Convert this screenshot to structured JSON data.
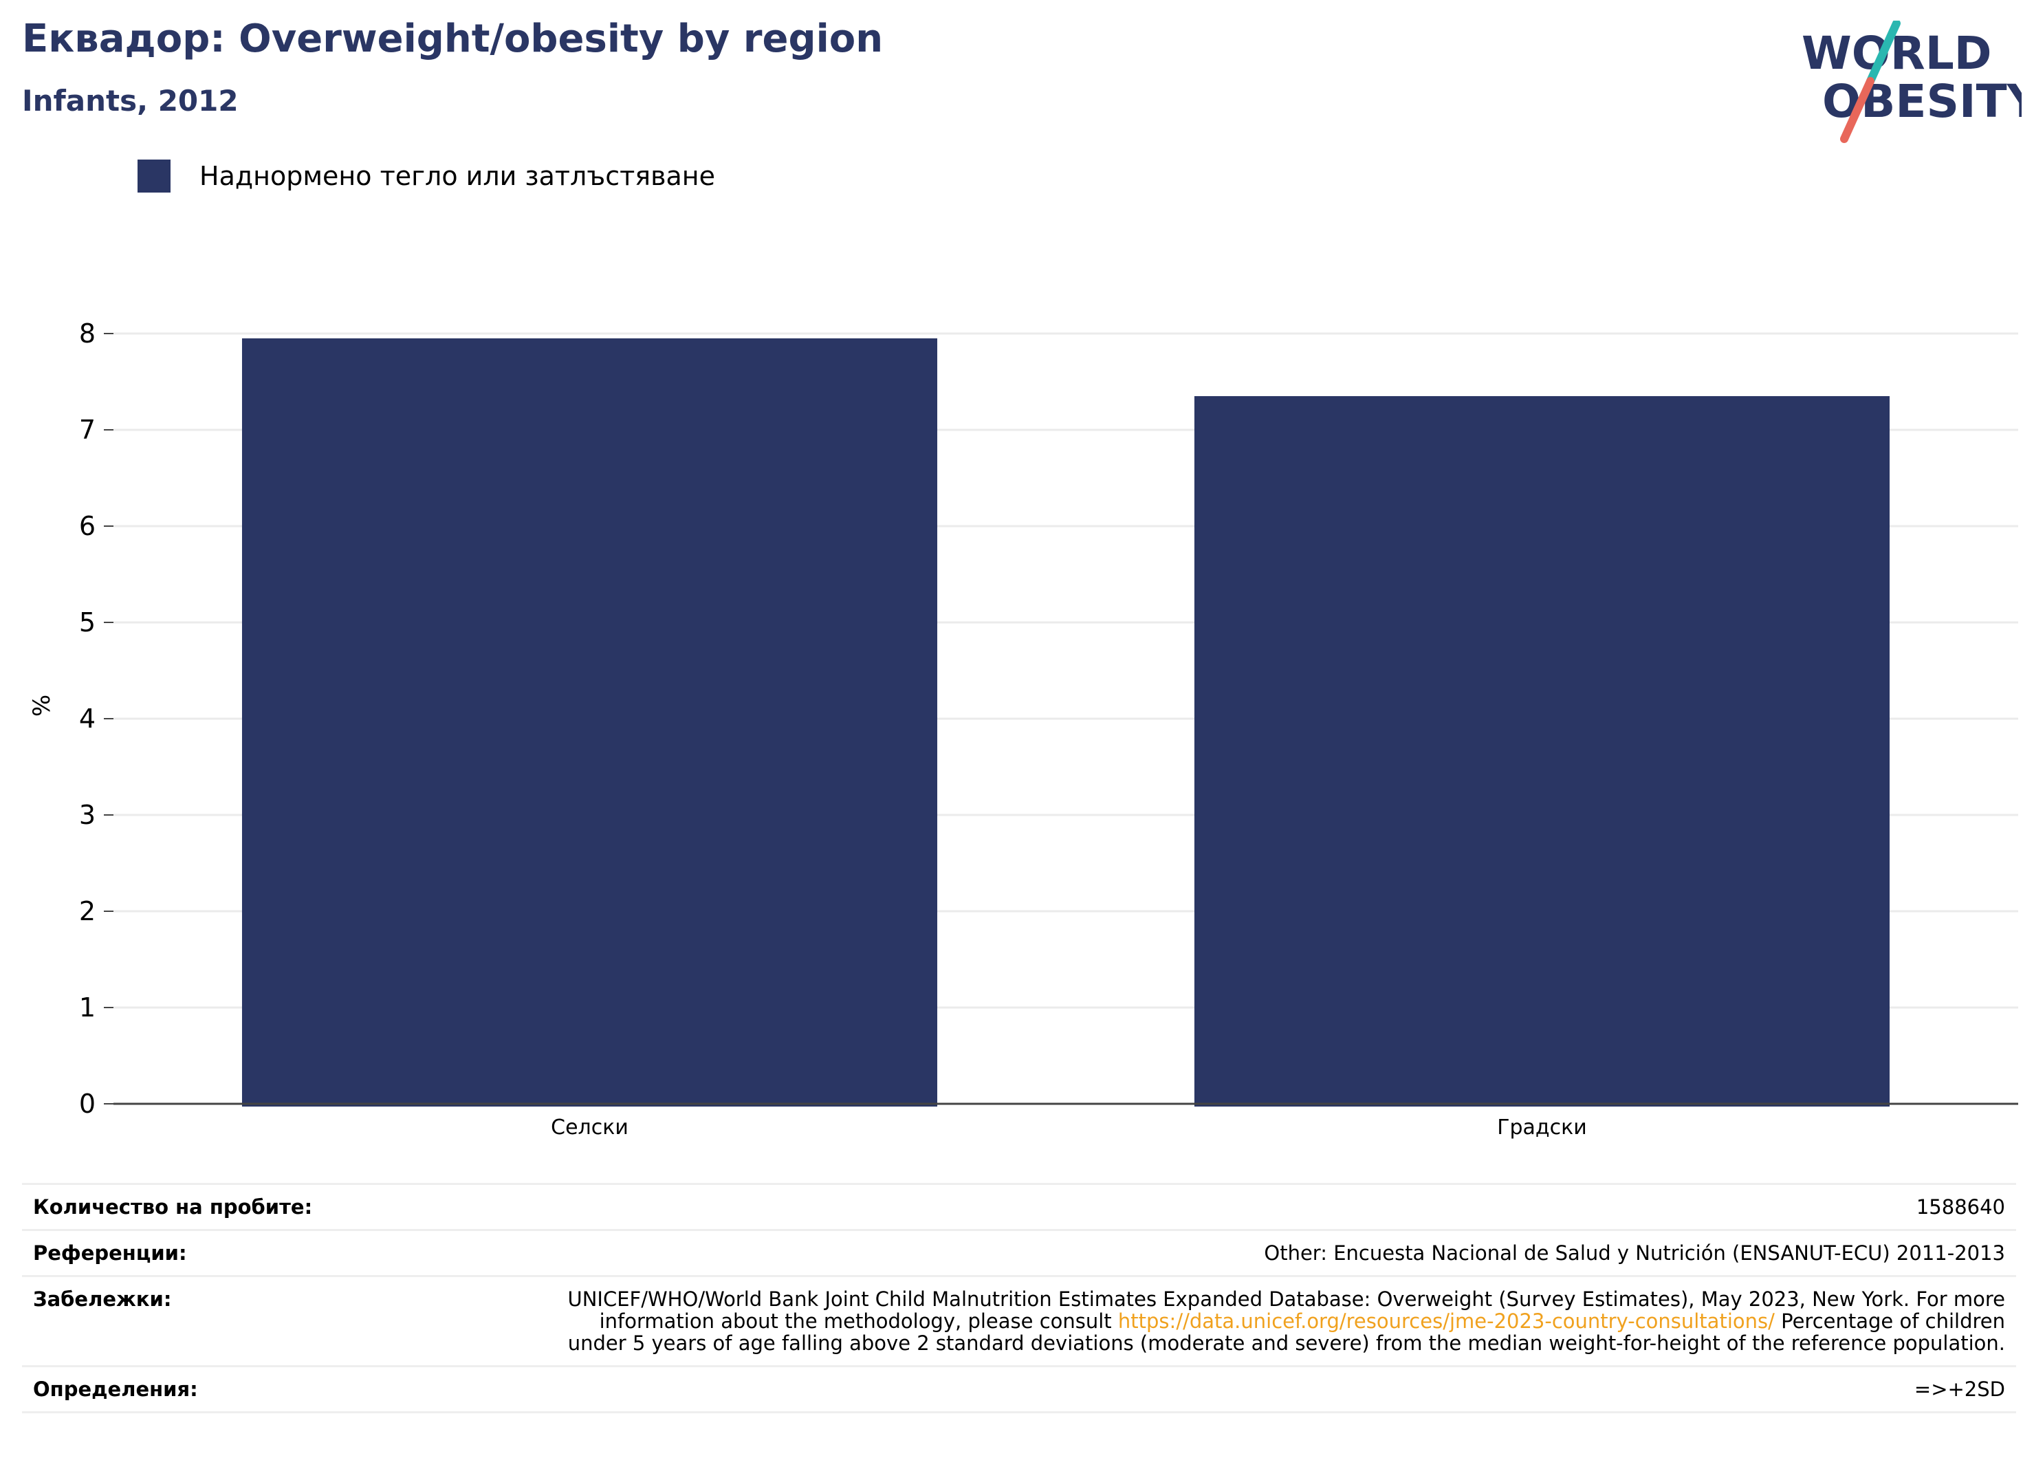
{
  "header": {
    "title": "Еквадор: Overweight/obesity by region",
    "subtitle": "Infants, 2012"
  },
  "logo": {
    "line1": "WORLD",
    "line2": "OBESITY",
    "colors": {
      "text": "#2a3664",
      "slash_top": "#2ab7b0",
      "slash_bottom": "#e8675a"
    }
  },
  "legend": {
    "label": "Наднормено тегло или затлъстяване",
    "color": "#2a3664"
  },
  "chart_data": {
    "type": "bar",
    "categories": [
      "Селски",
      "Градски"
    ],
    "series": [
      {
        "name": "Наднормено тегло или затлъстяване",
        "values": [
          7.95,
          7.35
        ],
        "color": "#2a3664"
      }
    ],
    "ylabel": "%",
    "ylim": [
      0,
      8
    ],
    "yticks": [
      0,
      1,
      2,
      3,
      4,
      5,
      6,
      7,
      8
    ],
    "grid": true,
    "legend_position": "top-left"
  },
  "info": {
    "sample_label": "Количество на пробите:",
    "sample_value": "1588640",
    "references_label": "Референции:",
    "references_value": "Other: Encuesta Nacional de Salud y Nutrición (ENSANUT-ECU) 2011-2013",
    "notes_label": "Забележки:",
    "notes_text_1": "UNICEF/WHO/World Bank Joint Child Malnutrition Estimates Expanded Database: Overweight (Survey Estimates), May 2023, New York. For more information about the methodology, please consult ",
    "notes_link": "https://data.unicef.org/resources/jme-2023-country-consultations/",
    "notes_text_2": " Percentage of children under 5 years of age falling above 2 standard deviations (moderate and severe) from the median weight-for-height of the reference population.",
    "definitions_label": "Определения:",
    "definitions_value": "=>+2SD"
  }
}
